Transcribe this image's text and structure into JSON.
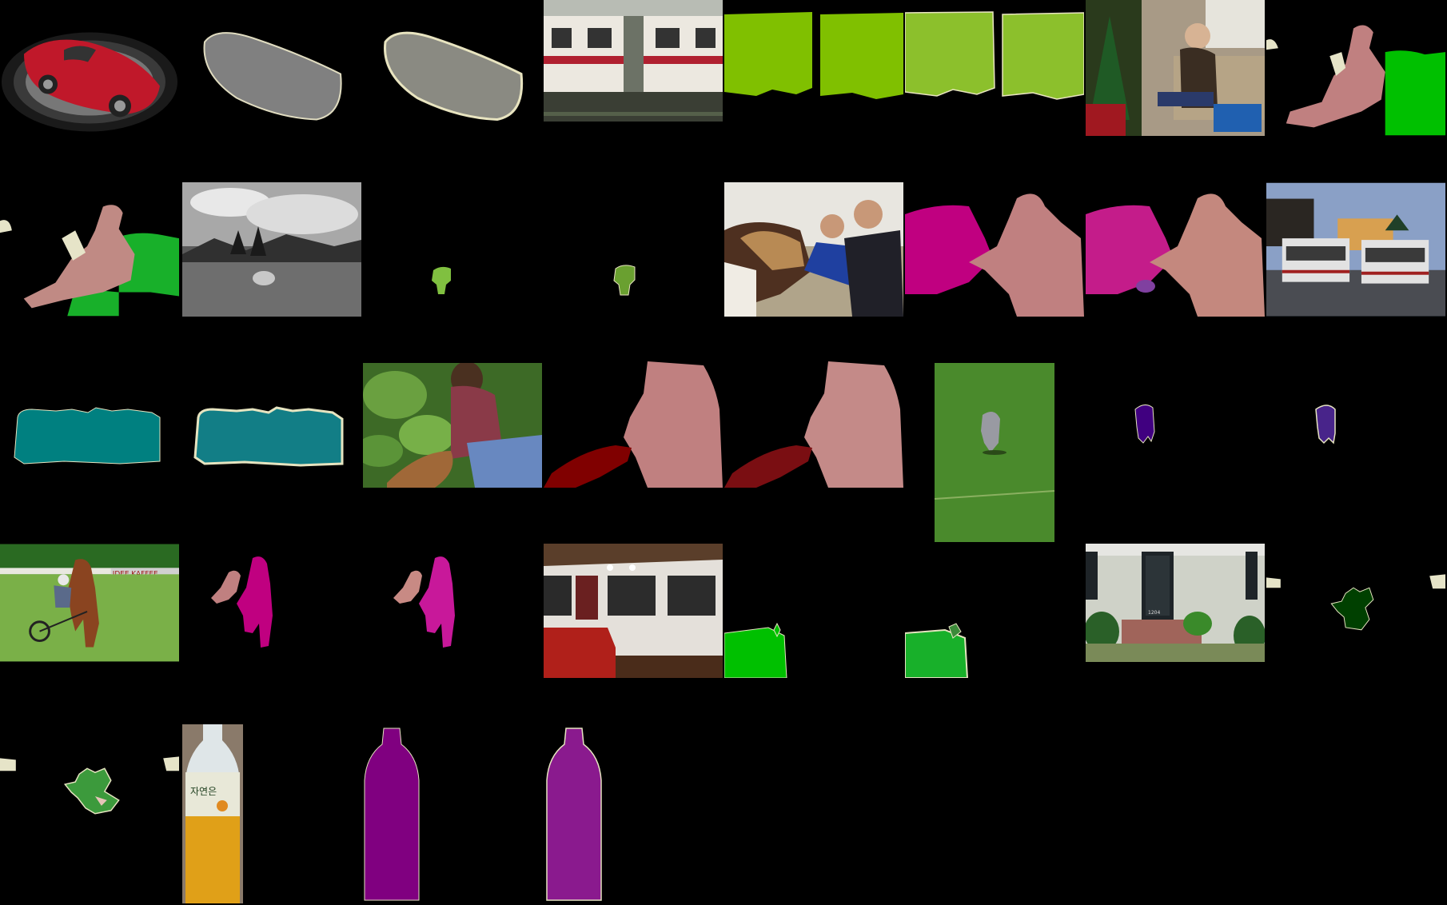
{
  "figure": {
    "rows": 5,
    "columns": 8,
    "background_color": "#000000",
    "panel_types": [
      "image",
      "ground-truth",
      "prediction"
    ]
  },
  "samples": [
    {
      "subject": "car",
      "mask_color": "#808080"
    },
    {
      "subject": "train",
      "mask_color": "#80c000"
    },
    {
      "subject": "person-sofa",
      "mask_colors": [
        "#c08080",
        "#00c000"
      ]
    },
    {
      "subject": "sheep",
      "mask_color": "#80c040"
    },
    {
      "subject": "horse-person",
      "mask_colors": [
        "#c00080",
        "#c08080"
      ]
    },
    {
      "subject": "bus",
      "mask_color": "#008080"
    },
    {
      "subject": "cat-person",
      "mask_colors": [
        "#800000",
        "#c08080"
      ]
    },
    {
      "subject": "dog",
      "mask_color": "#400080"
    },
    {
      "subject": "horse-rider",
      "mask_colors": [
        "#c00080",
        "#c08080"
      ]
    },
    {
      "subject": "room-sofa",
      "mask_color": "#00c000"
    },
    {
      "subject": "potted-plant",
      "mask_color": "#004000"
    },
    {
      "subject": "bottle",
      "mask_color": "#800080"
    }
  ],
  "photo_text": {
    "banner": "IDEE KAFFEE",
    "house_number": "1204",
    "bottle_label": "자연은"
  }
}
